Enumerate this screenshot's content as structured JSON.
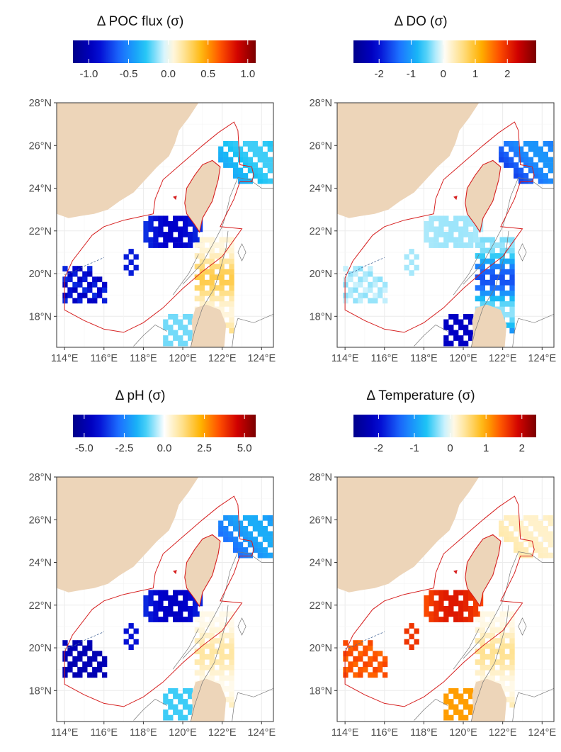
{
  "figure": {
    "panels": [
      {
        "id": "poc",
        "title": "Δ POC flux (σ)",
        "colorbar": {
          "min": -1.2,
          "max": 1.1,
          "ticks": [
            -1.0,
            -0.5,
            0.0,
            0.5,
            1.0
          ],
          "tick_labels": [
            "-1.0",
            "-0.5",
            "0.0",
            "0.5",
            "1.0"
          ]
        }
      },
      {
        "id": "do",
        "title": "Δ DO (σ)",
        "colorbar": {
          "min": -2.8,
          "max": 2.9,
          "ticks": [
            -2,
            -1,
            0,
            1,
            2
          ],
          "tick_labels": [
            "-2",
            "-1",
            "0",
            "1",
            "2"
          ]
        }
      },
      {
        "id": "ph",
        "title": "Δ pH (σ)",
        "colorbar": {
          "min": -5.7,
          "max": 5.7,
          "ticks": [
            -5.0,
            -2.5,
            0.0,
            2.5,
            5.0
          ],
          "tick_labels": [
            "-5.0",
            "-2.5",
            "0.0",
            "2.5",
            "5.0"
          ]
        }
      },
      {
        "id": "temp",
        "title": "Δ Temperature (σ)",
        "colorbar": {
          "min": -2.7,
          "max": 2.4,
          "ticks": [
            -2,
            -1,
            0,
            1,
            2
          ],
          "tick_labels": [
            "-2",
            "-1",
            "0",
            "1",
            "2"
          ]
        }
      }
    ],
    "map_axes": {
      "xlim": [
        113.6,
        124.6
      ],
      "ylim": [
        16.55,
        28.0
      ],
      "x_ticks": [
        114,
        116,
        118,
        120,
        122,
        124
      ],
      "x_tick_labels": [
        "114°E",
        "116°E",
        "118°E",
        "120°E",
        "122°E",
        "124°E"
      ],
      "y_ticks": [
        18,
        20,
        22,
        24,
        26,
        28
      ],
      "y_tick_labels": [
        "18°N",
        "20°N",
        "22°N",
        "24°N",
        "26°N",
        "28°N"
      ],
      "grid": true
    },
    "colors": {
      "land": "#EDD5B9",
      "boundary": "#D62020",
      "contour": "#777777",
      "colormap": [
        "#00008B",
        "#0000CD",
        "#1C6EFF",
        "#19C3F5",
        "#FFFFFF",
        "#FFE08A",
        "#FFB300",
        "#FF5000",
        "#D00000",
        "#7A0000"
      ]
    }
  }
}
